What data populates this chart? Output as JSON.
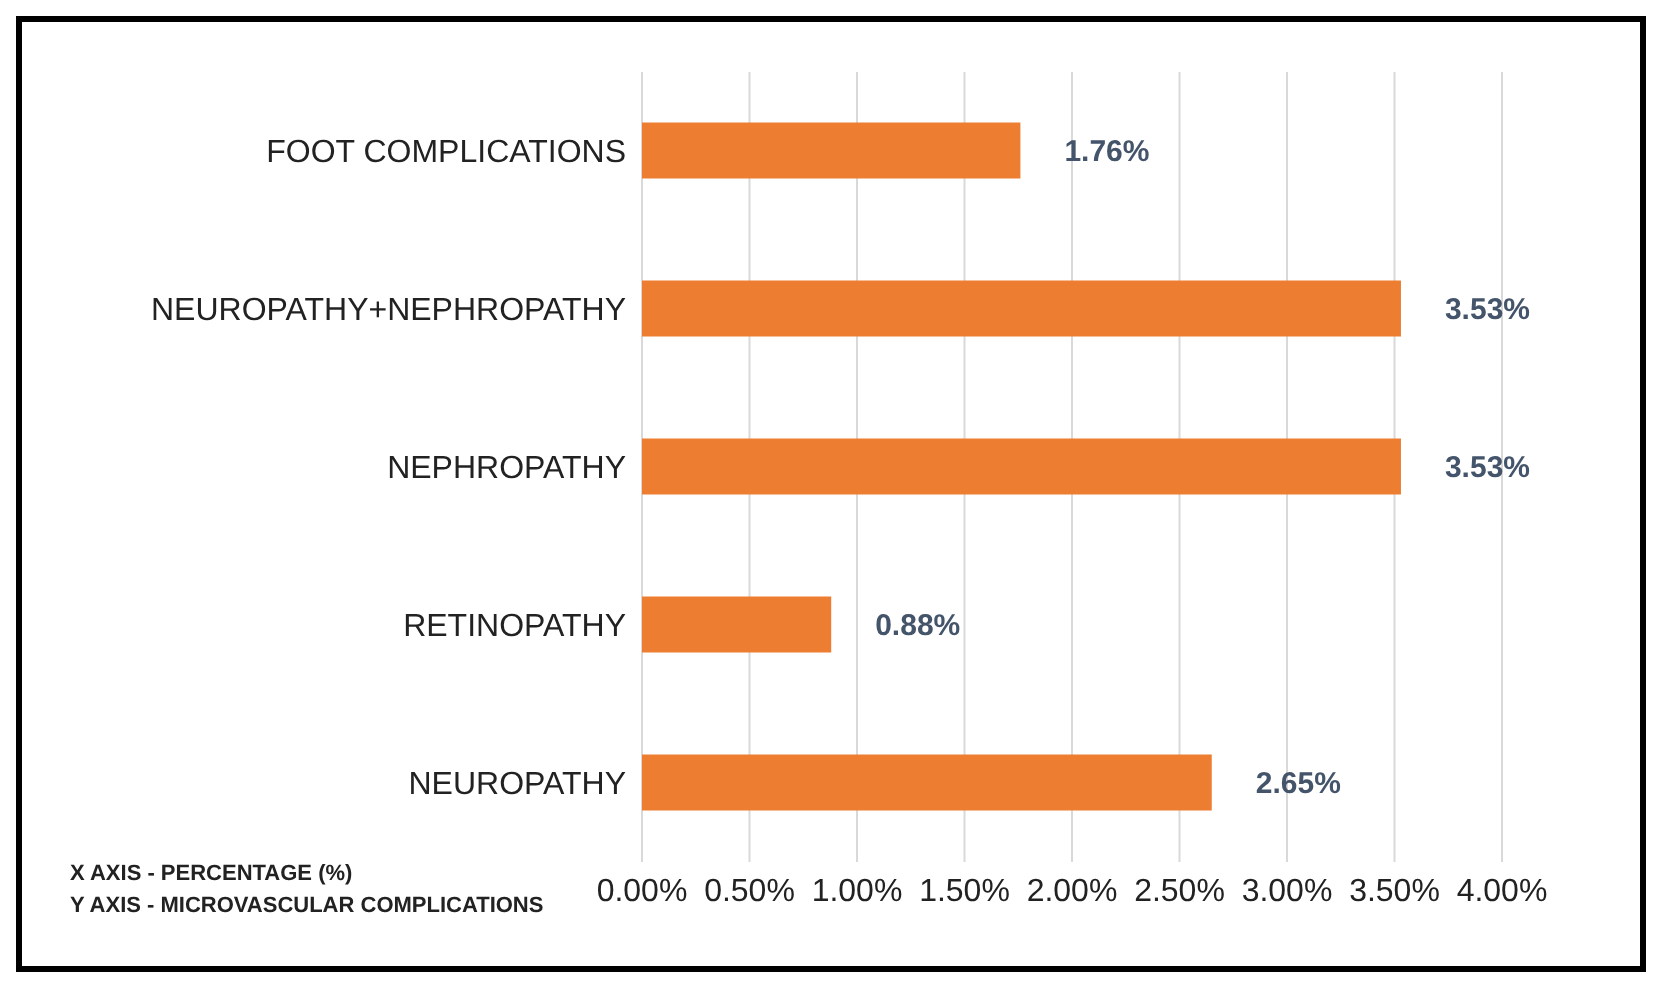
{
  "chart_data": {
    "type": "bar",
    "orientation": "horizontal",
    "categories": [
      "FOOT COMPLICATIONS",
      "NEUROPATHY+NEPHROPATHY",
      "NEPHROPATHY",
      "RETINOPATHY",
      "NEUROPATHY"
    ],
    "values": [
      1.76,
      3.53,
      3.53,
      0.88,
      2.65
    ],
    "value_labels": [
      "1.76%",
      "3.53%",
      "3.53%",
      "0.88%",
      "2.65%"
    ],
    "color": "#ed7d31",
    "xlim": [
      0,
      4
    ],
    "xticks": [
      {
        "value": 0,
        "label": "0.00%"
      },
      {
        "value": 0.5,
        "label": "0.50%"
      },
      {
        "value": 1,
        "label": "1.00%"
      },
      {
        "value": 1.5,
        "label": "1.50%"
      },
      {
        "value": 2,
        "label": "2.00%"
      },
      {
        "value": 2.5,
        "label": "2.50%"
      },
      {
        "value": 3,
        "label": "3.00%"
      },
      {
        "value": 3.5,
        "label": "3.50%"
      },
      {
        "value": 4,
        "label": "4.00%"
      }
    ],
    "grid": "x",
    "annotations": [
      "X AXIS - PERCENTAGE (%)",
      "Y AXIS - MICROVASCULAR COMPLICATIONS"
    ]
  }
}
